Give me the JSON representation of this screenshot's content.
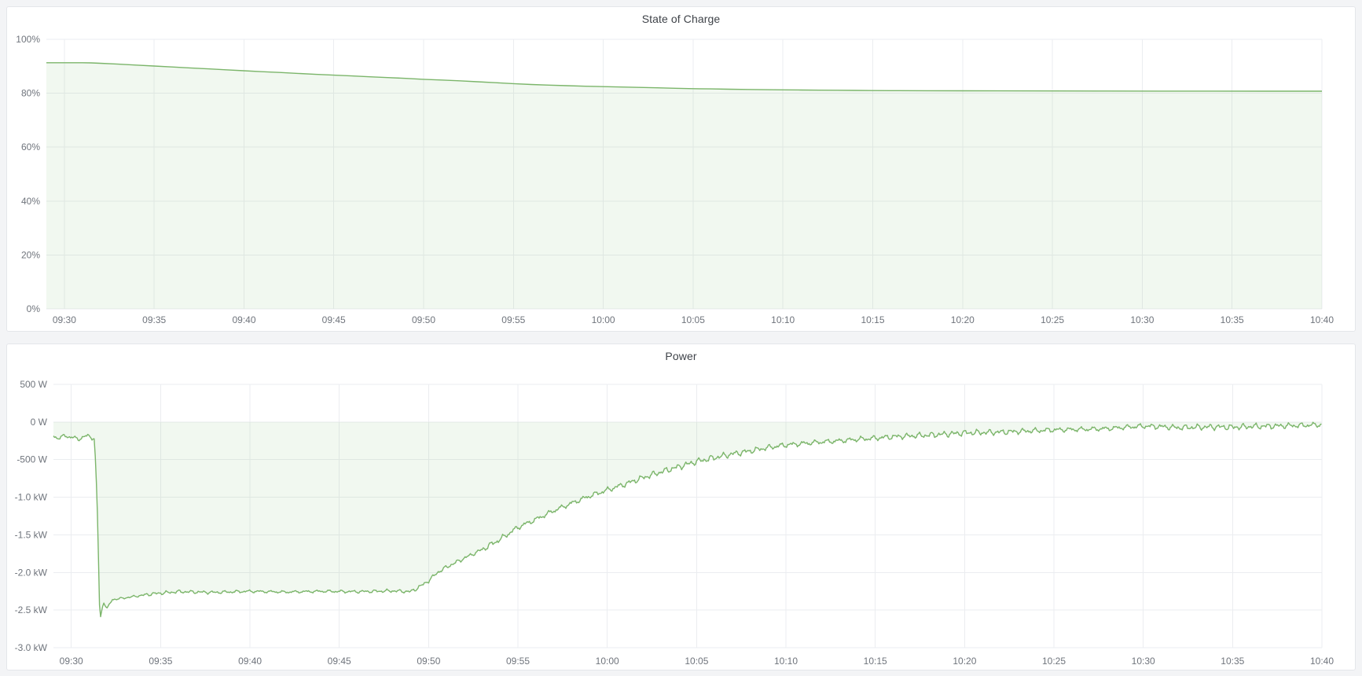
{
  "panels": [
    {
      "title": "State of Charge"
    },
    {
      "title": "Power"
    }
  ],
  "colors": {
    "series_line": "#7bb56a",
    "series_fill": "rgba(115,191,105,0.10)",
    "grid_line": "#ebedf0",
    "axis_text": "#6f747c",
    "title_text": "#3f4349",
    "panel_bg": "#ffffff",
    "panel_border": "#e4e6ea",
    "page_bg": "#f3f4f6"
  },
  "chart_data": [
    {
      "id": "soc",
      "type": "area",
      "title": "State of Charge",
      "ylabel": "",
      "xlabel": "",
      "unit": "percent",
      "legend": "none",
      "grid": true,
      "x_axis": {
        "start_minute": 569,
        "end_minute": 640,
        "tick_minutes": [
          570,
          575,
          580,
          585,
          590,
          595,
          600,
          605,
          610,
          615,
          620,
          625,
          630,
          635,
          640
        ],
        "tick_labels": [
          "09:30",
          "09:35",
          "09:40",
          "09:45",
          "09:50",
          "09:55",
          "10:00",
          "10:05",
          "10:10",
          "10:15",
          "10:20",
          "10:25",
          "10:30",
          "10:35",
          "10:40"
        ]
      },
      "y_axis": {
        "min": 0,
        "max": 100,
        "ticks": [
          {
            "value": 100,
            "label": "100%"
          },
          {
            "value": 80,
            "label": "80%"
          },
          {
            "value": 60,
            "label": "60%"
          },
          {
            "value": 40,
            "label": "40%"
          },
          {
            "value": 20,
            "label": "20%"
          },
          {
            "value": 0,
            "label": "0%"
          }
        ]
      },
      "fill_to_zero": true,
      "noise_segments": [],
      "points": [
        [
          569,
          91.3
        ],
        [
          570,
          91.3
        ],
        [
          571,
          91.3
        ],
        [
          571.5,
          91.25
        ],
        [
          572,
          91.1
        ],
        [
          573,
          90.8
        ],
        [
          574,
          90.45
        ],
        [
          575,
          90.1
        ],
        [
          576,
          89.75
        ],
        [
          577,
          89.4
        ],
        [
          578,
          89.05
        ],
        [
          579,
          88.7
        ],
        [
          580,
          88.35
        ],
        [
          581,
          88.0
        ],
        [
          582,
          87.7
        ],
        [
          583,
          87.35
        ],
        [
          584,
          87.0
        ],
        [
          585,
          86.7
        ],
        [
          586,
          86.4
        ],
        [
          587,
          86.1
        ],
        [
          588,
          85.8
        ],
        [
          589,
          85.5
        ],
        [
          590,
          85.15
        ],
        [
          591,
          84.9
        ],
        [
          592,
          84.6
        ],
        [
          593,
          84.25
        ],
        [
          594,
          83.9
        ],
        [
          595,
          83.55
        ],
        [
          596,
          83.25
        ],
        [
          597,
          83.0
        ],
        [
          598,
          82.8
        ],
        [
          599,
          82.6
        ],
        [
          600,
          82.45
        ],
        [
          601,
          82.3
        ],
        [
          602,
          82.15
        ],
        [
          603,
          82.0
        ],
        [
          604,
          81.85
        ],
        [
          605,
          81.7
        ],
        [
          606,
          81.6
        ],
        [
          607,
          81.5
        ],
        [
          608,
          81.4
        ],
        [
          609,
          81.3
        ],
        [
          610,
          81.25
        ],
        [
          611,
          81.2
        ],
        [
          612,
          81.15
        ],
        [
          613,
          81.1
        ],
        [
          614,
          81.05
        ],
        [
          615,
          81.0
        ],
        [
          616,
          80.97
        ],
        [
          618,
          80.93
        ],
        [
          620,
          80.9
        ],
        [
          622,
          80.88
        ],
        [
          625,
          80.85
        ],
        [
          628,
          80.82
        ],
        [
          631,
          80.8
        ],
        [
          634,
          80.78
        ],
        [
          637,
          80.77
        ],
        [
          640,
          80.75
        ]
      ]
    },
    {
      "id": "power",
      "type": "area",
      "title": "Power",
      "ylabel": "",
      "xlabel": "",
      "unit": "watt",
      "legend": "none",
      "grid": true,
      "x_axis": {
        "start_minute": 569,
        "end_minute": 640,
        "tick_minutes": [
          570,
          575,
          580,
          585,
          590,
          595,
          600,
          605,
          610,
          615,
          620,
          625,
          630,
          635,
          640
        ],
        "tick_labels": [
          "09:30",
          "09:35",
          "09:40",
          "09:45",
          "09:50",
          "09:55",
          "10:00",
          "10:05",
          "10:10",
          "10:15",
          "10:20",
          "10:25",
          "10:30",
          "10:35",
          "10:40"
        ]
      },
      "y_axis": {
        "min": -3000,
        "max": 500,
        "ticks": [
          {
            "value": 500,
            "label": "500 W"
          },
          {
            "value": 0,
            "label": "0 W"
          },
          {
            "value": -500,
            "label": "-500 W"
          },
          {
            "value": -1000,
            "label": "-1.0 kW"
          },
          {
            "value": -1500,
            "label": "-1.5 kW"
          },
          {
            "value": -2000,
            "label": "-2.0 kW"
          },
          {
            "value": -2500,
            "label": "-2.5 kW"
          },
          {
            "value": -3000,
            "label": "-3.0 kW"
          }
        ]
      },
      "fill_to_zero": true,
      "noise_segments": [
        {
          "from": 569,
          "to": 571.3,
          "amp": 30
        },
        {
          "from": 571.3,
          "to": 574,
          "amp": 14
        },
        {
          "from": 574,
          "to": 589,
          "amp": 22
        },
        {
          "from": 589,
          "to": 593,
          "amp": 26
        },
        {
          "from": 593,
          "to": 616,
          "amp": 42
        },
        {
          "from": 616,
          "to": 640,
          "amp": 40
        }
      ],
      "points": [
        [
          569,
          -190
        ],
        [
          569.3,
          -215
        ],
        [
          569.6,
          -185
        ],
        [
          570,
          -200
        ],
        [
          570.4,
          -230
        ],
        [
          570.7,
          -195
        ],
        [
          571,
          -185
        ],
        [
          571.3,
          -225
        ],
        [
          571.45,
          -1100
        ],
        [
          571.6,
          -2640
        ],
        [
          571.8,
          -2390
        ],
        [
          572,
          -2480
        ],
        [
          572.3,
          -2360
        ],
        [
          572.8,
          -2345
        ],
        [
          573.5,
          -2320
        ],
        [
          574.5,
          -2285
        ],
        [
          576,
          -2255
        ],
        [
          578,
          -2265
        ],
        [
          580,
          -2250
        ],
        [
          582,
          -2260
        ],
        [
          584,
          -2250
        ],
        [
          586,
          -2255
        ],
        [
          588,
          -2245
        ],
        [
          589,
          -2255
        ],
        [
          589.5,
          -2190
        ],
        [
          590,
          -2110
        ],
        [
          590.5,
          -2000
        ],
        [
          591,
          -1930
        ],
        [
          591.5,
          -1870
        ],
        [
          592,
          -1810
        ],
        [
          593,
          -1695
        ],
        [
          594,
          -1560
        ],
        [
          595,
          -1400
        ],
        [
          596,
          -1295
        ],
        [
          597,
          -1180
        ],
        [
          598,
          -1080
        ],
        [
          599,
          -985
        ],
        [
          600,
          -905
        ],
        [
          601,
          -825
        ],
        [
          602,
          -740
        ],
        [
          603,
          -665
        ],
        [
          604,
          -595
        ],
        [
          605,
          -525
        ],
        [
          606,
          -475
        ],
        [
          607,
          -425
        ],
        [
          608,
          -385
        ],
        [
          609,
          -340
        ],
        [
          610,
          -305
        ],
        [
          611,
          -285
        ],
        [
          612,
          -265
        ],
        [
          613,
          -250
        ],
        [
          614,
          -230
        ],
        [
          615,
          -215
        ],
        [
          616,
          -195
        ],
        [
          617,
          -185
        ],
        [
          618,
          -175
        ],
        [
          619,
          -160
        ],
        [
          620,
          -145
        ],
        [
          621,
          -140
        ],
        [
          622,
          -135
        ],
        [
          623,
          -125
        ],
        [
          624,
          -115
        ],
        [
          625,
          -105
        ],
        [
          626,
          -100
        ],
        [
          627,
          -95
        ],
        [
          628,
          -88
        ],
        [
          629,
          -70
        ],
        [
          630,
          -55
        ],
        [
          631,
          -62
        ],
        [
          632,
          -75
        ],
        [
          633,
          -70
        ],
        [
          634,
          -65
        ],
        [
          635,
          -70
        ],
        [
          636,
          -60
        ],
        [
          637,
          -55
        ],
        [
          638,
          -50
        ],
        [
          639,
          -45
        ],
        [
          640,
          -35
        ]
      ]
    }
  ]
}
